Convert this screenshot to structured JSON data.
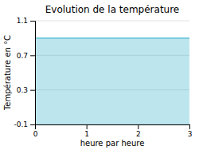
{
  "chart_data": {
    "type": "area",
    "title": "Evolution de la température",
    "xlabel": "heure par heure",
    "ylabel": "Température en °C",
    "x": [
      0,
      3
    ],
    "values": [
      0.9,
      0.9
    ],
    "color": "#5bbfd4",
    "xlim": [
      0,
      3
    ],
    "ylim": [
      -0.1,
      1.1
    ],
    "xticks": [
      0,
      1,
      2,
      3
    ],
    "yticks": [
      -0.1,
      0.3,
      0.7,
      1.1
    ],
    "grid": "y"
  }
}
